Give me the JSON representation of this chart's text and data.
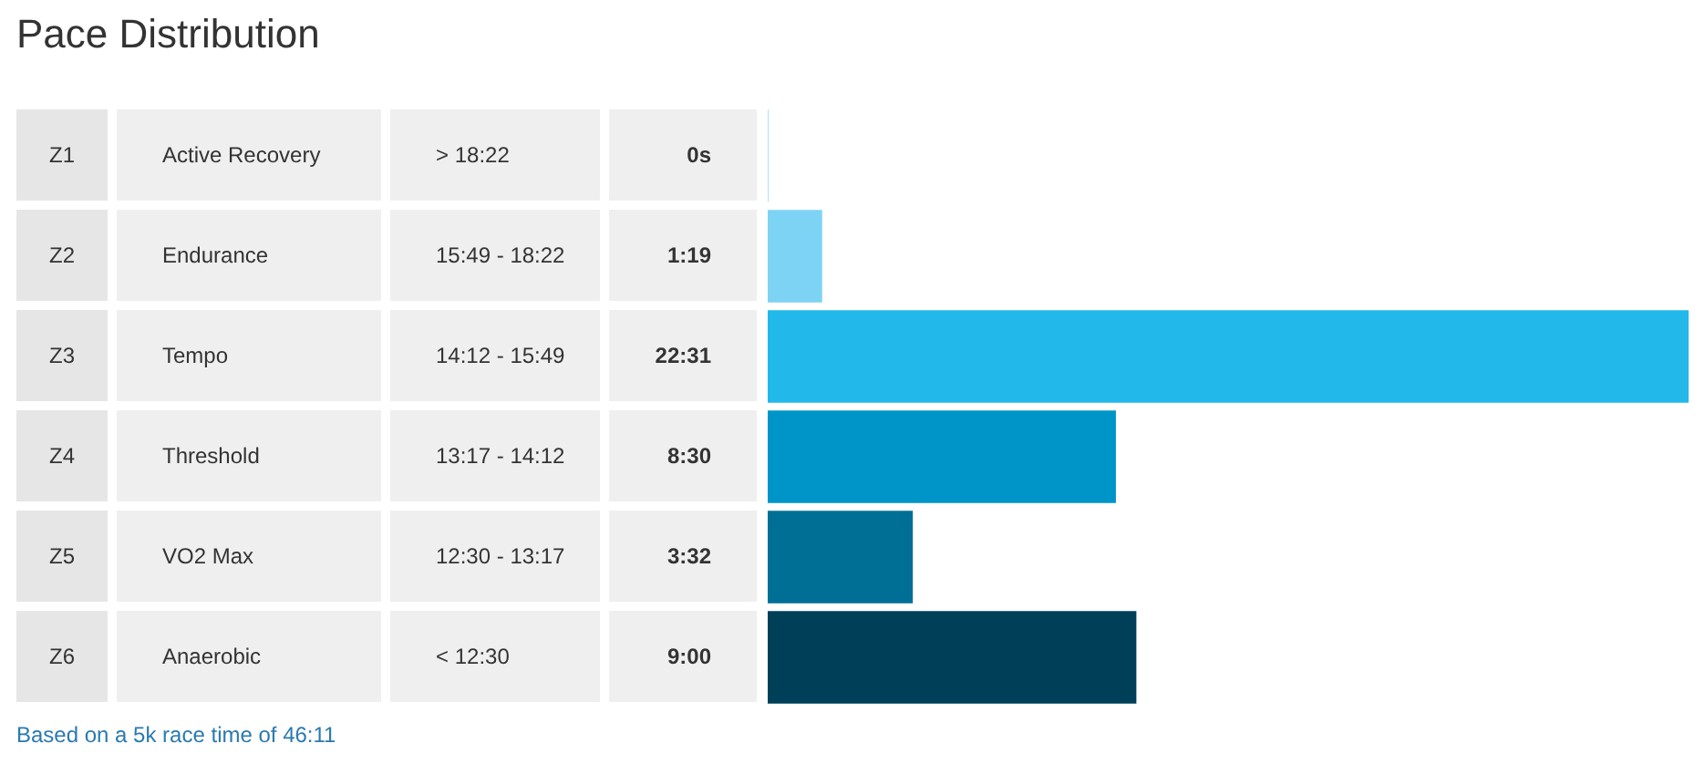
{
  "chart_data": {
    "type": "bar",
    "orientation": "horizontal",
    "title": "Pace Distribution",
    "categories": [
      "Z1",
      "Z2",
      "Z3",
      "Z4",
      "Z5",
      "Z6"
    ],
    "values": [
      0,
      79,
      1351,
      510,
      212,
      540
    ],
    "value_labels": [
      "0s",
      "1:19",
      "22:31",
      "8:30",
      "3:32",
      "9:00"
    ],
    "colors": [
      "#7dd3f3",
      "#7dd3f3",
      "#22b8ea",
      "#0095c8",
      "#006f96",
      "#003f58"
    ],
    "annotations": [
      "Active Recovery",
      "> 18:22",
      "Endurance",
      "15:49 - 18:22",
      "Tempo",
      "14:12 - 15:49",
      "Threshold",
      "13:17 - 14:12",
      "VO2 Max",
      "12:30 - 13:17",
      "Anaerobic",
      "< 12:30",
      "Based on a 5k race time of 46:11"
    ],
    "legend": false
  }
}
